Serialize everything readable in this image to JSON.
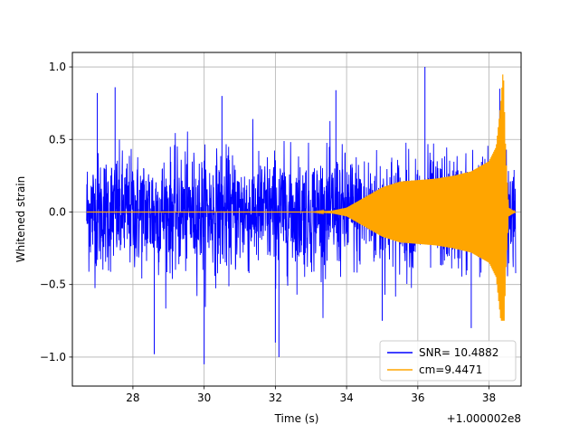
{
  "chart_data": {
    "type": "line",
    "title": "",
    "xlabel": "Time (s)",
    "ylabel": "Whitened strain",
    "x_offset_label": "+1.000002e8",
    "xlim": [
      26.3,
      38.9
    ],
    "ylim": [
      -1.2,
      1.1
    ],
    "x_ticks": [
      28,
      30,
      32,
      34,
      36,
      38
    ],
    "x_tick_labels": [
      "28",
      "30",
      "32",
      "34",
      "36",
      "38"
    ],
    "y_ticks": [
      -1.0,
      -0.5,
      0.0,
      0.5,
      1.0
    ],
    "y_tick_labels": [
      "−1.0",
      "−0.5",
      "0.0",
      "0.5",
      "1.0"
    ],
    "grid": true,
    "legend_position": "lower-right",
    "series": [
      {
        "name": "SNR= 10.4882",
        "color": "#0000ff",
        "x_range": [
          26.7,
          38.75
        ],
        "typical_amplitude": 0.5,
        "peak_max": 1.0,
        "peak_min": -1.05,
        "description_style": "noise"
      },
      {
        "name": "cm=9.4471",
        "color": "#ffa500",
        "x_range": [
          26.7,
          38.75
        ],
        "envelope": [
          [
            26.7,
            0.0
          ],
          [
            33.0,
            0.0
          ],
          [
            33.6,
            0.01
          ],
          [
            34.0,
            0.03
          ],
          [
            34.5,
            0.1
          ],
          [
            35.0,
            0.17
          ],
          [
            35.5,
            0.21
          ],
          [
            36.5,
            0.23
          ],
          [
            37.0,
            0.25
          ],
          [
            37.5,
            0.28
          ],
          [
            38.0,
            0.35
          ],
          [
            38.2,
            0.45
          ],
          [
            38.33,
            0.75
          ],
          [
            38.4,
            1.0
          ],
          [
            38.47,
            0.4
          ],
          [
            38.55,
            0.03
          ],
          [
            38.75,
            0.0
          ]
        ],
        "peak_max": 1.0,
        "peak_min": -0.75
      }
    ]
  }
}
